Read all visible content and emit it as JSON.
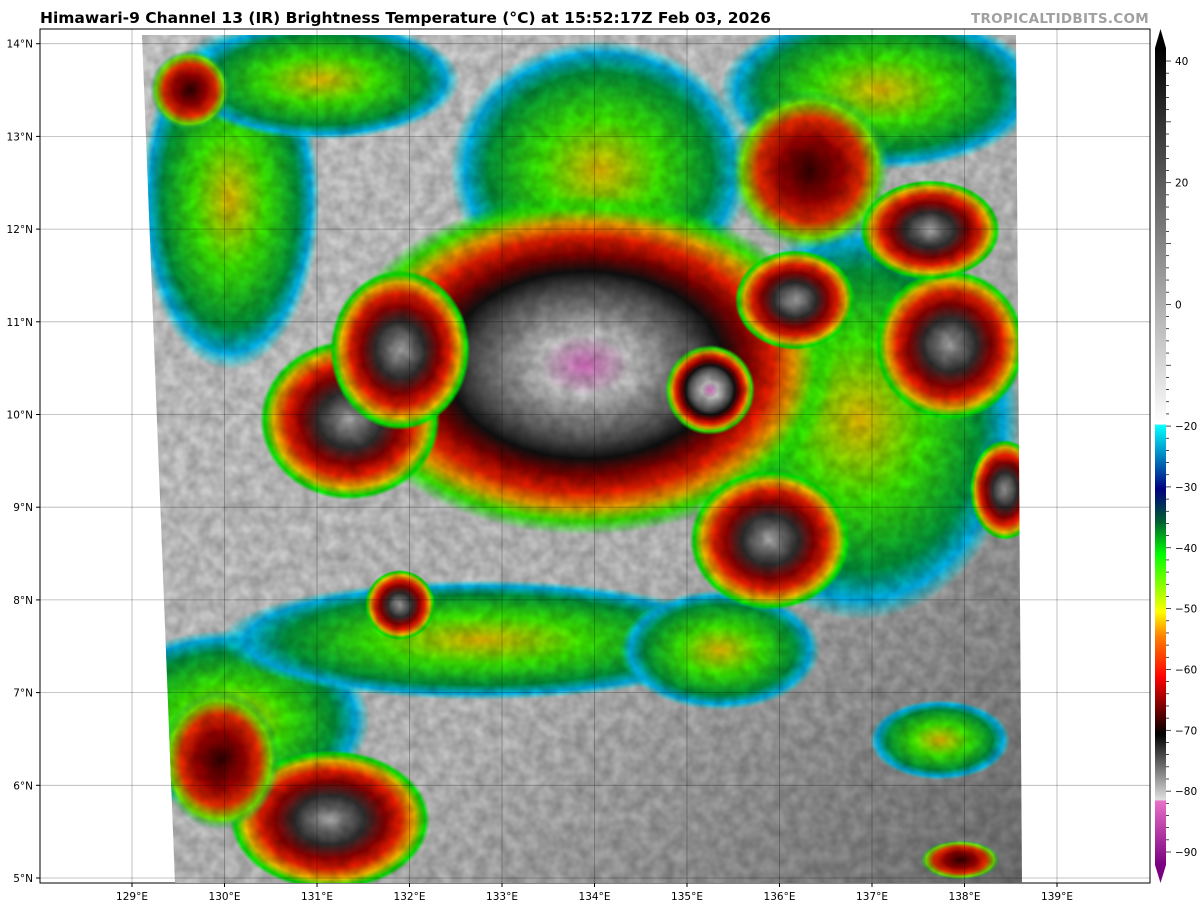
{
  "header": {
    "title": "Himawari-9 Channel 13 (IR) Brightness Temperature (°C) at 15:52:17Z Feb 03, 2026",
    "brand": "TROPICALTIDBITS.COM"
  },
  "map": {
    "lat_ticks": [
      "5°N",
      "6°N",
      "7°N",
      "8°N",
      "9°N",
      "10°N",
      "11°N",
      "12°N",
      "13°N",
      "14°N"
    ],
    "lon_ticks": [
      "129°E",
      "130°E",
      "131°E",
      "132°E",
      "133°E",
      "134°E",
      "135°E",
      "136°E",
      "137°E",
      "138°E",
      "139°E"
    ],
    "lat_range": [
      4.95,
      14.15
    ],
    "lon_range": [
      128,
      140
    ],
    "grid": true
  },
  "colorbar": {
    "label_values": [
      "40",
      "20",
      "0",
      "−20",
      "−30",
      "−40",
      "−50",
      "−60",
      "−70",
      "−80",
      "−90"
    ],
    "range": [
      -90,
      40
    ],
    "units": "°C",
    "colors": {
      "purple": "#7a0080",
      "pink": "#e870c8",
      "black": "#000000",
      "dark_red": "#600000",
      "red": "#ff0000",
      "orange": "#ff8000",
      "yellow": "#ffff00",
      "green": "#00ff00",
      "dark_green": "#006030",
      "navy": "#000080",
      "cyan": "#00ffff",
      "white": "#ffffff"
    }
  }
}
